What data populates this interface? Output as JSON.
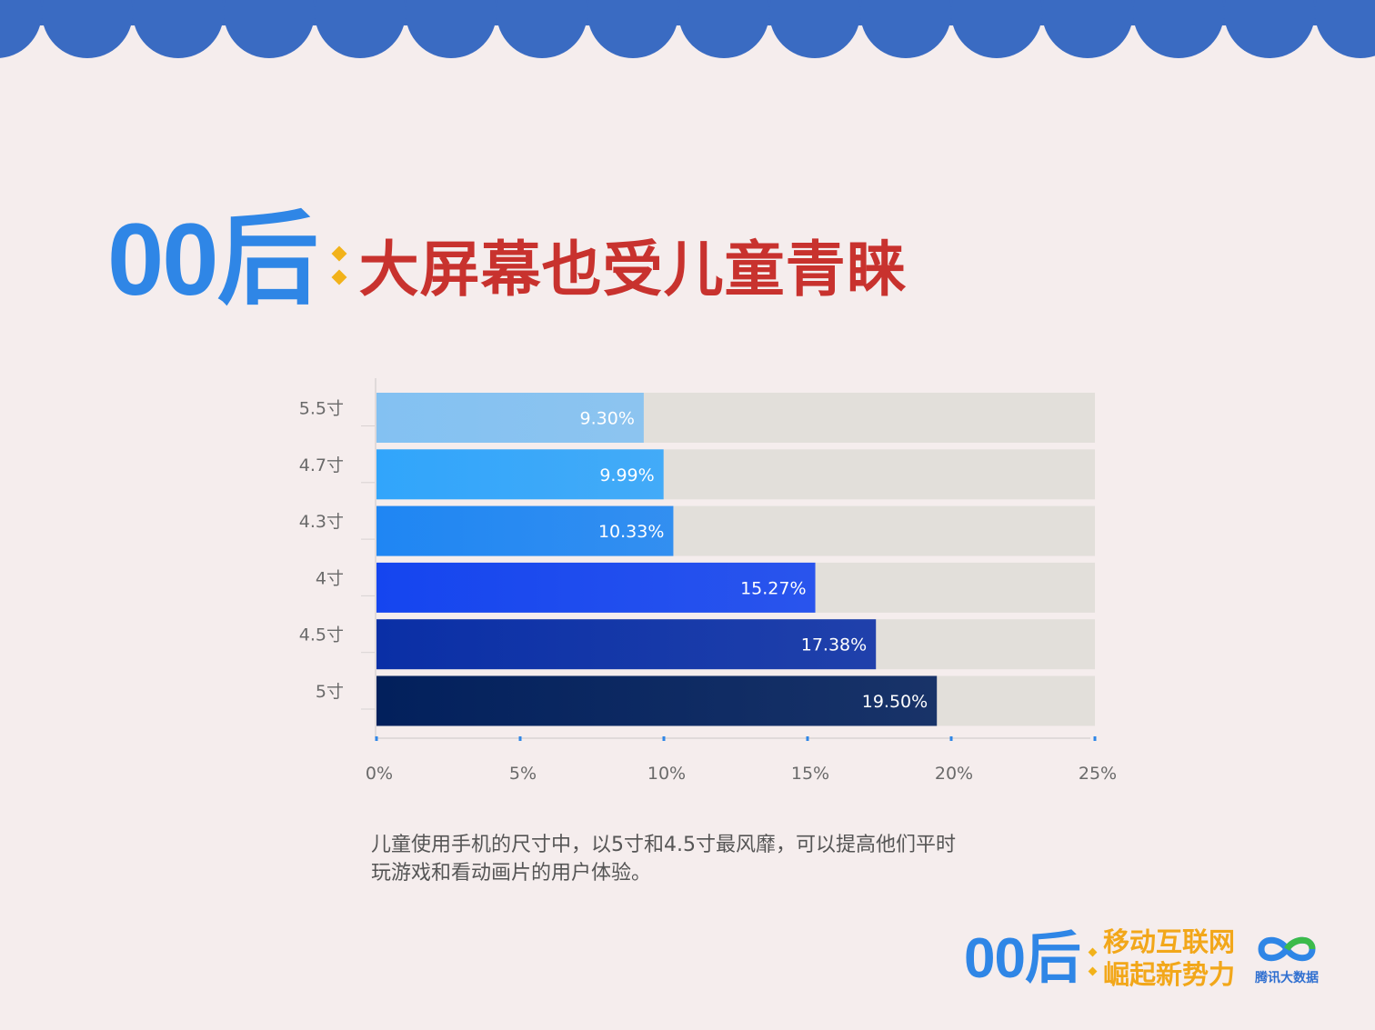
{
  "colors": {
    "banner": "#3a6bc2",
    "title_blue": "#2f86e6",
    "title_red": "#c8322e",
    "accent_yellow": "#f2b21a",
    "track": "#e2dfda",
    "bars": [
      "#83c1f2",
      "#31a5fb",
      "#1f86f3",
      "#1545ef",
      "#0a2fa6",
      "#02205c"
    ]
  },
  "title": {
    "big": "00后",
    "sub": "大屏幕也受儿童青睐"
  },
  "chart_data": {
    "type": "bar",
    "orientation": "horizontal",
    "categories": [
      "5.5寸",
      "4.7寸",
      "4.3寸",
      "4寸",
      "4.5寸",
      "5寸"
    ],
    "values": [
      9.3,
      9.99,
      10.33,
      15.27,
      17.38,
      19.5
    ],
    "value_labels": [
      "9.30%",
      "9.99%",
      "10.33%",
      "15.27%",
      "17.38%",
      "19.50%"
    ],
    "x_ticks": [
      "0%",
      "5%",
      "10%",
      "15%",
      "20%",
      "25%"
    ],
    "xlim": [
      0,
      25
    ],
    "unit": "%",
    "grid": false,
    "legend": "none"
  },
  "caption": {
    "line1": "儿童使用手机的尺寸中，以5寸和4.5寸最风靡，可以提高他们平时",
    "line2": "玩游戏和看动画片的用户体验。"
  },
  "footer": {
    "big": "00后",
    "slogan_line1": "移动互联网",
    "slogan_line2": "崛起新势力",
    "logo_text": "腾讯大数据",
    "logo_icon": "infinity-icon"
  }
}
